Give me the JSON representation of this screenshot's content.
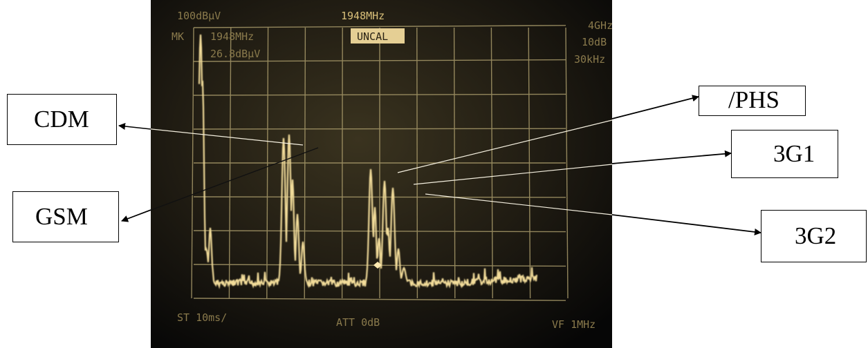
{
  "screen": {
    "ref_level": "100dBμV",
    "center_freq": "1948MHz",
    "span": "4GHz",
    "marker_label": "MK",
    "marker_freq": "1948MHz",
    "marker_level": "26.8dBμV",
    "uncal": "UNCAL",
    "right_1": "10dB",
    "right_2": "30kHz",
    "sweep": "ST 10ms/",
    "attenuation": "ATT   0dB",
    "video_filter": "VF 1MHz"
  },
  "labels": {
    "cdm": "CDM",
    "gsm": "GSM",
    "phs": "/PHS",
    "g3_1": "3G1",
    "g3_2": "3G2"
  },
  "colors": {
    "trace": "#f2dc9a",
    "grid": "#b8a877",
    "screen_bg": "#1a1710"
  }
}
